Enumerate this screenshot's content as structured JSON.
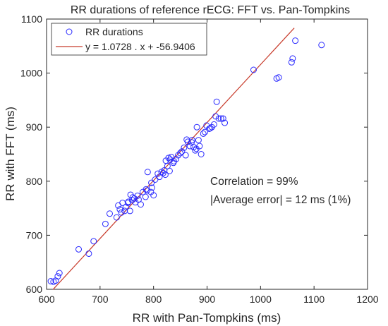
{
  "chart_data": {
    "type": "scatter",
    "title": "RR durations of reference rECG: FFT vs. Pan-Tompkins",
    "xlabel": "RR with Pan-Tompkins (ms)",
    "ylabel": "RR with FFT (ms)",
    "xlim": [
      600,
      1200
    ],
    "ylim": [
      600,
      1100
    ],
    "xticks": [
      600,
      700,
      800,
      900,
      1000,
      1100,
      1200
    ],
    "yticks": [
      600,
      700,
      800,
      900,
      1000,
      1100
    ],
    "grid": false,
    "legend_position": "top-left",
    "colors": {
      "points": "#2a2aff",
      "fit_line": "#c83c2c",
      "axes": "#262626"
    },
    "fit": {
      "slope": 1.0728,
      "intercept": -56.9406,
      "x_range": [
        612,
        1063
      ]
    },
    "legend": [
      {
        "label": "RR durations",
        "marker": "circle"
      },
      {
        "label": "y = 1.0728 . x + -56.9406",
        "marker": "line"
      }
    ],
    "annotations": [
      "Correlation = 99%",
      "|Average error| = 12 ms (1%)"
    ],
    "series": [
      {
        "name": "RR durations",
        "x": [
          608,
          613,
          617,
          621,
          624,
          660,
          679,
          688,
          710,
          718,
          731,
          734,
          737,
          740,
          742,
          746,
          748,
          752,
          753,
          756,
          757,
          760,
          761,
          764,
          766,
          770,
          772,
          776,
          780,
          785,
          786,
          788,
          789,
          795,
          796,
          797,
          800,
          803,
          808,
          811,
          815,
          818,
          820,
          822,
          823,
          826,
          828,
          830,
          831,
          833,
          837,
          838,
          842,
          846,
          850,
          853,
          857,
          860,
          862,
          864,
          868,
          871,
          872,
          875,
          878,
          880,
          881,
          884,
          886,
          889,
          893,
          896,
          899,
          904,
          906,
          909,
          913,
          916,
          918,
          922,
          926,
          930,
          933,
          987,
          1030,
          1034,
          1058,
          1060,
          1065,
          1114
        ],
        "y": [
          615,
          614,
          616,
          624,
          630,
          674,
          666,
          689,
          721,
          740,
          733,
          755,
          748,
          742,
          760,
          745,
          752,
          760,
          762,
          745,
          775,
          765,
          770,
          768,
          761,
          773,
          766,
          757,
          780,
          771,
          785,
          783,
          817,
          780,
          797,
          788,
          774,
          803,
          814,
          808,
          817,
          815,
          820,
          812,
          838,
          828,
          843,
          819,
          840,
          845,
          834,
          837,
          841,
          848,
          852,
          855,
          862,
          848,
          877,
          873,
          865,
          872,
          876,
          863,
          857,
          860,
          900,
          876,
          865,
          850,
          888,
          891,
          903,
          897,
          898,
          900,
          905,
          920,
          947,
          916,
          916,
          916,
          908,
          1006,
          990,
          992,
          1020,
          1027,
          1060,
          1052
        ]
      }
    ]
  }
}
